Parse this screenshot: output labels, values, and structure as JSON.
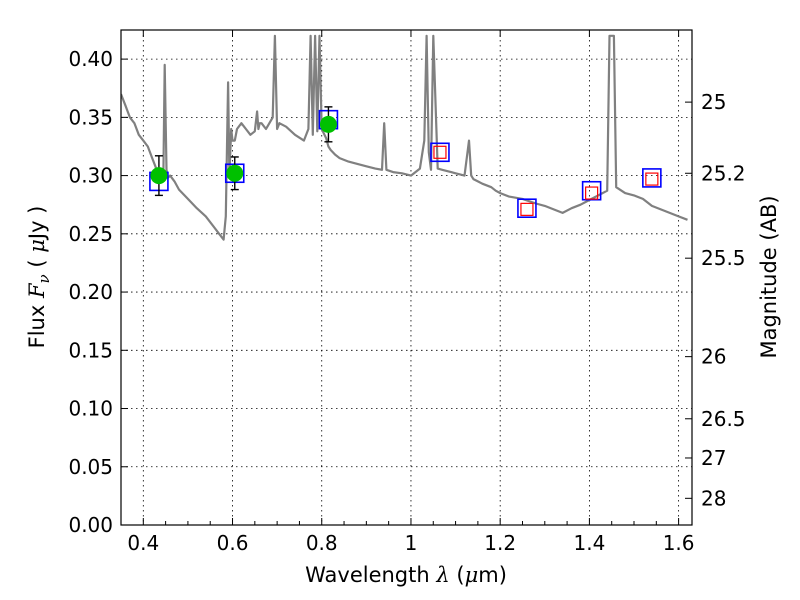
{
  "chart_data": {
    "type": "scatter",
    "xlim": [
      0.35,
      1.63
    ],
    "ylim": [
      0.0,
      0.425
    ],
    "grid": true,
    "x_ticks": [
      0.4,
      0.6,
      0.8,
      1.0,
      1.2,
      1.4,
      1.6
    ],
    "x_tick_labels": [
      "0.4",
      "0.6",
      "0.8",
      "1",
      "1.2",
      "1.4",
      "1.6"
    ],
    "y_ticks": [
      0.0,
      0.05,
      0.1,
      0.15,
      0.2,
      0.25,
      0.3,
      0.35,
      0.4
    ],
    "y_tick_labels": [
      "0.00",
      "0.05",
      "0.10",
      "0.15",
      "0.20",
      "0.25",
      "0.30",
      "0.35",
      "0.40"
    ],
    "xlabel": {
      "prefix": "Wavelength",
      "symbol": "λ",
      "unit_open": "(",
      "unit_mu": "μ",
      "unit_rest": "m)"
    },
    "ylabel": {
      "prefix": "Flux",
      "symbol": "F",
      "subscript": "ν",
      "unit_open": "(",
      "unit_mu": "μ",
      "unit_rest": "Jy )"
    },
    "y2label": "Magnitude (AB)",
    "y2_ticks": [
      {
        "label": "25",
        "mag": 25.0
      },
      {
        "label": "25.2",
        "mag": 25.2
      },
      {
        "label": "25.5",
        "mag": 25.5
      },
      {
        "label": "26",
        "mag": 26.0
      },
      {
        "label": "26.5",
        "mag": 26.5
      },
      {
        "label": "27",
        "mag": 27.0
      },
      {
        "label": "28",
        "mag": 28.0
      }
    ],
    "colors": {
      "spectrum": "#808080",
      "observed_fill": "#00c000",
      "model_box": "#0000ff",
      "nir_inner_box": "#ff0000",
      "grid": "#000000"
    },
    "series": [
      {
        "kind": "model_spectrum",
        "x": [
          0.35,
          0.36,
          0.37,
          0.38,
          0.39,
          0.4,
          0.41,
          0.42,
          0.43,
          0.44,
          0.445,
          0.448,
          0.452,
          0.455,
          0.46,
          0.47,
          0.48,
          0.5,
          0.52,
          0.54,
          0.56,
          0.57,
          0.58,
          0.585,
          0.59,
          0.593,
          0.597,
          0.6,
          0.605,
          0.61,
          0.62,
          0.63,
          0.64,
          0.65,
          0.655,
          0.658,
          0.661,
          0.665,
          0.675,
          0.69,
          0.695,
          0.7,
          0.705,
          0.72,
          0.74,
          0.76,
          0.77,
          0.775,
          0.78,
          0.785,
          0.79,
          0.795,
          0.8,
          0.81,
          0.815,
          0.82,
          0.83,
          0.84,
          0.86,
          0.88,
          0.9,
          0.92,
          0.935,
          0.94,
          0.945,
          0.96,
          0.98,
          1.0,
          1.02,
          1.03,
          1.035,
          1.04,
          1.045,
          1.05,
          1.06,
          1.07,
          1.08,
          1.09,
          1.1,
          1.12,
          1.13,
          1.135,
          1.14,
          1.15,
          1.16,
          1.18,
          1.19,
          1.2,
          1.22,
          1.25,
          1.28,
          1.3,
          1.32,
          1.34,
          1.36,
          1.38,
          1.4,
          1.42,
          1.44,
          1.445,
          1.45,
          1.455,
          1.46,
          1.48,
          1.5,
          1.52,
          1.54,
          1.56,
          1.58,
          1.6,
          1.62
        ],
        "y": [
          0.37,
          0.36,
          0.35,
          0.345,
          0.335,
          0.33,
          0.325,
          0.315,
          0.305,
          0.3,
          0.303,
          0.395,
          0.305,
          0.298,
          0.3,
          0.295,
          0.288,
          0.28,
          0.272,
          0.265,
          0.255,
          0.25,
          0.245,
          0.265,
          0.38,
          0.3,
          0.34,
          0.33,
          0.33,
          0.34,
          0.345,
          0.34,
          0.335,
          0.338,
          0.355,
          0.34,
          0.345,
          0.345,
          0.34,
          0.35,
          0.42,
          0.34,
          0.345,
          0.342,
          0.335,
          0.33,
          0.34,
          0.42,
          0.335,
          0.42,
          0.338,
          0.42,
          0.34,
          0.332,
          0.325,
          0.322,
          0.318,
          0.315,
          0.312,
          0.31,
          0.308,
          0.306,
          0.305,
          0.345,
          0.305,
          0.303,
          0.302,
          0.3,
          0.306,
          0.33,
          0.42,
          0.32,
          0.305,
          0.42,
          0.306,
          0.305,
          0.304,
          0.303,
          0.302,
          0.3,
          0.33,
          0.3,
          0.297,
          0.295,
          0.293,
          0.29,
          0.287,
          0.285,
          0.282,
          0.28,
          0.276,
          0.274,
          0.271,
          0.268,
          0.272,
          0.275,
          0.279,
          0.283,
          0.287,
          0.42,
          0.42,
          0.42,
          0.29,
          0.285,
          0.283,
          0.28,
          0.274,
          0.271,
          0.268,
          0.265,
          0.262
        ]
      },
      {
        "kind": "observed_photometry",
        "x": [
          0.435,
          0.605,
          0.815
        ],
        "y": [
          0.3,
          0.302,
          0.344
        ],
        "yerr": [
          0.017,
          0.014,
          0.015
        ]
      },
      {
        "kind": "model_photometry",
        "x": [
          0.435,
          0.605,
          0.815,
          1.065,
          1.26,
          1.405,
          1.54
        ],
        "y": [
          0.295,
          0.302,
          0.348,
          0.32,
          0.272,
          0.287,
          0.298
        ]
      },
      {
        "kind": "nir_inner",
        "x": [
          1.065,
          1.26,
          1.405,
          1.54
        ],
        "y": [
          0.32,
          0.271,
          0.285,
          0.297
        ]
      }
    ]
  }
}
